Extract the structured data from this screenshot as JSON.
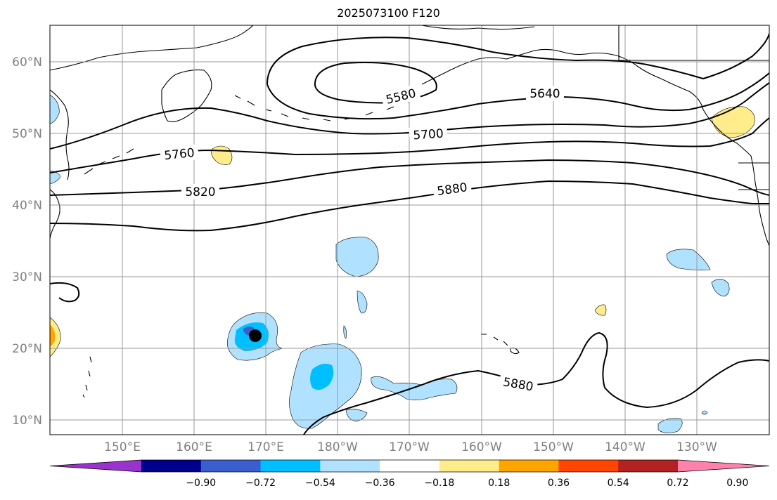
{
  "title": "2025073100 F120",
  "map": {
    "lat_labels": [
      "60°N",
      "50°N",
      "40°N",
      "30°N",
      "20°N",
      "10°N"
    ],
    "lon_labels": [
      "150°E",
      "160°E",
      "170°E",
      "180°W",
      "170°W",
      "160°W",
      "150°W",
      "140°W",
      "130°W"
    ],
    "contour_labels": [
      "5580",
      "5640",
      "5700",
      "5760",
      "5820",
      "5880",
      "5880"
    ],
    "contour_color": "#000000",
    "grid_color": "#999999",
    "coast_color": "#000000",
    "marker": {
      "shape": "filled-circle",
      "color": "#000000",
      "lat": 21.5,
      "lon": 171.5
    }
  },
  "colorbar": {
    "colors": [
      "#9a32cd",
      "#00008b",
      "#3a5fcd",
      "#00bfff",
      "#b0e2ff",
      "#ffffff",
      "#ffec8b",
      "#ffa500",
      "#ff4500",
      "#b22222",
      "#ff82ab"
    ],
    "tick_labels": [
      "−0.90",
      "−0.72",
      "−0.54",
      "−0.36",
      "−0.18",
      "0.18",
      "0.36",
      "0.54",
      "0.72",
      "0.90"
    ],
    "extend": "both"
  }
}
